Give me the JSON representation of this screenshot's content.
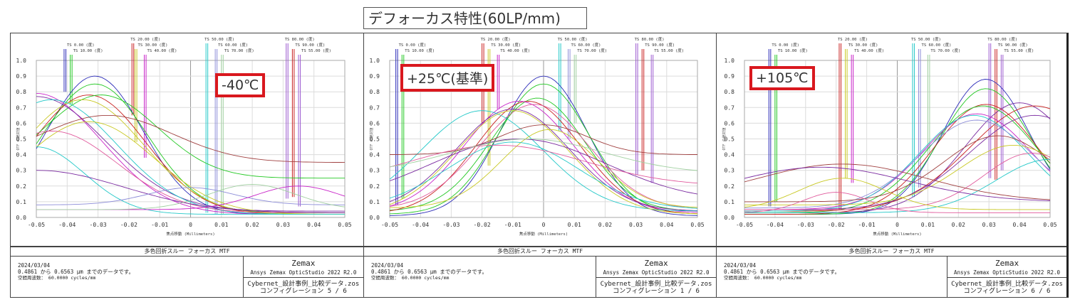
{
  "page_title": "デフォーカス特性(60LP/mm)",
  "colors": {
    "highlight_border": "#d9181e",
    "grid": "#d8d8d8",
    "series_palette": [
      "#2b2bb8",
      "#22c822",
      "#c81e1e",
      "#c8c822",
      "#c822c8",
      "#22c8c8",
      "#7a2aa0",
      "#8c8cd8",
      "#e05a9c",
      "#a0d0a0",
      "#a04040",
      "#9b59d0"
    ]
  },
  "chart_data": [
    {
      "type": "line",
      "panel_id": "config-5",
      "temperature_label": "-40℃",
      "title": "多色回折スルー フォーカス MTF",
      "xlabel": "焦点移動 (Millimeters)",
      "ylabel": "OTF の絶対値",
      "xlim": [
        -0.05,
        0.05
      ],
      "ylim": [
        0.0,
        1.0
      ],
      "x_ticks": [
        "-0.05",
        "-0.04",
        "-0.03",
        "-0.02",
        "-0.01",
        "0",
        "0.01",
        "0.02",
        "0.03",
        "0.04",
        "0.05"
      ],
      "y_ticks": [
        "0.0",
        "0.1",
        "0.2",
        "0.3",
        "0.4",
        "0.5",
        "0.6",
        "0.7",
        "0.8",
        "0.9",
        "1.0"
      ],
      "grid": true,
      "field_markers": [
        {
          "label": "TS 0.00 (度)",
          "x": -0.041,
          "color": "#2b2bb8",
          "y_end": 0.8
        },
        {
          "label": "TS 10.00 (度)",
          "x": -0.039,
          "color": "#22c822",
          "y_end": 0.72
        },
        {
          "label": "TS 20.00 (度)",
          "x": -0.019,
          "color": "#c81e1e",
          "y_end": 0.65
        },
        {
          "label": "TS 30.00 (度)",
          "x": -0.018,
          "color": "#c8c822",
          "y_end": 0.48
        },
        {
          "label": "TS 40.00 (度)",
          "x": -0.015,
          "color": "#c822c8",
          "y_end": 0.38
        },
        {
          "label": "TS 50.00 (度)",
          "x": 0.005,
          "color": "#22c8c8",
          "y_end": 0.03
        },
        {
          "label": "TS 60.00 (度)",
          "x": 0.008,
          "color": "#8c8cd8",
          "y_end": 0.02
        },
        {
          "label": "TS 70.00 (度)",
          "x": 0.01,
          "color": "#a0d0a0",
          "y_end": 0.02
        },
        {
          "label": "TS 80.00 (度)",
          "x": 0.031,
          "color": "#9b59d0",
          "y_end": 0.12
        },
        {
          "label": "TS 90.00 (度)",
          "x": 0.033,
          "color": "#c81e1e",
          "y_end": 0.13
        },
        {
          "label": "TS 55.00 (度)",
          "x": 0.035,
          "color": "#9b59d0",
          "y_end": 0.07
        }
      ],
      "series": [
        {
          "name": "s1",
          "color": "#2b2bb8",
          "peak_x": -0.031,
          "peak": 0.9,
          "width": 0.022,
          "base": 0.02
        },
        {
          "name": "s2",
          "color": "#22c822",
          "peak_x": -0.031,
          "peak": 0.85,
          "width": 0.024,
          "base": 0.03
        },
        {
          "name": "s3",
          "color": "#c81e1e",
          "peak_x": -0.033,
          "peak": 0.78,
          "width": 0.026,
          "base": 0.02
        },
        {
          "name": "s4",
          "color": "#22c822",
          "peak_x": -0.029,
          "peak": 0.78,
          "width": 0.026,
          "base": 0.25
        },
        {
          "name": "s5",
          "color": "#c8c822",
          "peak_x": -0.035,
          "peak": 0.75,
          "width": 0.028,
          "base": 0.02
        },
        {
          "name": "s6",
          "color": "#c822c8",
          "peak_x": -0.05,
          "peak": 0.79,
          "width": 0.03,
          "base": 0.02
        },
        {
          "name": "s7",
          "color": "#7a2aa0",
          "peak_x": -0.05,
          "peak": 0.77,
          "width": 0.032,
          "base": 0.04
        },
        {
          "name": "s8",
          "color": "#22c8c8",
          "peak_x": -0.045,
          "peak": 0.75,
          "width": 0.03,
          "base": 0.02
        },
        {
          "name": "s9",
          "color": "#a04040",
          "peak_x": -0.027,
          "peak": 0.65,
          "width": 0.03,
          "base": 0.35
        },
        {
          "name": "s10",
          "color": "#c8c822",
          "peak_x": -0.033,
          "peak": 0.61,
          "width": 0.03,
          "base": 0.02
        },
        {
          "name": "s11",
          "color": "#e05a9c",
          "peak_x": -0.045,
          "peak": 0.55,
          "width": 0.03,
          "base": 0.03
        },
        {
          "name": "s12",
          "color": "#22c8c8",
          "peak_x": -0.05,
          "peak": 0.45,
          "width": 0.022,
          "base": 0.02
        },
        {
          "name": "s13",
          "color": "#7a2aa0",
          "peak_x": -0.05,
          "peak": 0.3,
          "width": 0.04,
          "base": 0.03
        },
        {
          "name": "s14",
          "color": "#8c8cd8",
          "peak_x": 0.0,
          "peak": 0.19,
          "width": 0.02,
          "base": 0.08
        },
        {
          "name": "s15",
          "color": "#c822c8",
          "peak_x": 0.035,
          "peak": 0.2,
          "width": 0.02,
          "base": 0.05
        },
        {
          "name": "s16",
          "color": "#a0d0a0",
          "peak_x": 0.02,
          "peak": 0.21,
          "width": 0.02,
          "base": 0.05
        }
      ]
    },
    {
      "type": "line",
      "panel_id": "config-1",
      "temperature_label": "+25℃(基準)",
      "title": "多色回折スルー フォーカス MTF",
      "xlabel": "焦点移動 (Millimeters)",
      "ylabel": "OTF の絶対値",
      "xlim": [
        -0.05,
        0.05
      ],
      "ylim": [
        0.0,
        1.0
      ],
      "x_ticks": [
        "-0.05",
        "-0.04",
        "-0.03",
        "-0.02",
        "-0.01",
        "0",
        "0.01",
        "0.02",
        "0.03",
        "0.04",
        "0.05"
      ],
      "y_ticks": [
        "0.0",
        "0.1",
        "0.2",
        "0.3",
        "0.4",
        "0.5",
        "0.6",
        "0.7",
        "0.8",
        "0.9",
        "1.0"
      ],
      "grid": true,
      "field_markers": [
        {
          "label": "TS 0.00 (度)",
          "x": -0.048,
          "color": "#2b2bb8",
          "y_end": 0.08
        },
        {
          "label": "TS 10.00 (度)",
          "x": -0.046,
          "color": "#22c822",
          "y_end": 0.12
        },
        {
          "label": "TS 20.00 (度)",
          "x": -0.02,
          "color": "#c81e1e",
          "y_end": 0.6
        },
        {
          "label": "TS 30.00 (度)",
          "x": -0.018,
          "color": "#c8c822",
          "y_end": 0.33
        },
        {
          "label": "TS 40.00 (度)",
          "x": -0.015,
          "color": "#c822c8",
          "y_end": 0.69
        },
        {
          "label": "TS 50.00 (度)",
          "x": 0.005,
          "color": "#22c8c8",
          "y_end": 0.55
        },
        {
          "label": "TS 60.00 (度)",
          "x": 0.008,
          "color": "#8c8cd8",
          "y_end": 0.5
        },
        {
          "label": "TS 70.00 (度)",
          "x": 0.01,
          "color": "#a0d0a0",
          "y_end": 0.6
        },
        {
          "label": "TS 80.00 (度)",
          "x": 0.03,
          "color": "#9b59d0",
          "y_end": 0.27
        },
        {
          "label": "TS 90.00 (度)",
          "x": 0.032,
          "color": "#c81e1e",
          "y_end": 0.3
        },
        {
          "label": "TS 55.00 (度)",
          "x": 0.035,
          "color": "#9b59d0",
          "y_end": 0.22
        }
      ],
      "series": [
        {
          "name": "s1",
          "color": "#2b2bb8",
          "peak_x": 0.0,
          "peak": 0.9,
          "width": 0.02,
          "base": 0.01
        },
        {
          "name": "s2",
          "color": "#22c822",
          "peak_x": 0.0,
          "peak": 0.85,
          "width": 0.021,
          "base": 0.02
        },
        {
          "name": "s3",
          "color": "#22c822",
          "peak_x": -0.002,
          "peak": 0.76,
          "width": 0.022,
          "base": 0.04
        },
        {
          "name": "s4",
          "color": "#c81e1e",
          "peak_x": -0.005,
          "peak": 0.74,
          "width": 0.024,
          "base": 0.02
        },
        {
          "name": "s5",
          "color": "#c822c8",
          "peak_x": -0.008,
          "peak": 0.74,
          "width": 0.025,
          "base": 0.03
        },
        {
          "name": "s6",
          "color": "#e05a9c",
          "peak_x": -0.003,
          "peak": 0.72,
          "width": 0.025,
          "base": 0.05
        },
        {
          "name": "s7",
          "color": "#7a2aa0",
          "peak_x": -0.01,
          "peak": 0.69,
          "width": 0.026,
          "base": 0.04
        },
        {
          "name": "s8",
          "color": "#22c8c8",
          "peak_x": -0.02,
          "peak": 0.68,
          "width": 0.028,
          "base": 0.04
        },
        {
          "name": "s9",
          "color": "#c8c822",
          "peak_x": -0.01,
          "peak": 0.68,
          "width": 0.026,
          "base": 0.02
        },
        {
          "name": "s10",
          "color": "#a04040",
          "peak_x": 0.0,
          "peak": 0.59,
          "width": 0.02,
          "base": 0.4
        },
        {
          "name": "s11",
          "color": "#c8c822",
          "peak_x": 0.002,
          "peak": 0.56,
          "width": 0.022,
          "base": 0.06
        },
        {
          "name": "s12",
          "color": "#7a2aa0",
          "peak_x": -0.008,
          "peak": 0.5,
          "width": 0.04,
          "base": 0.1
        },
        {
          "name": "s13",
          "color": "#22c8c8",
          "peak_x": -0.01,
          "peak": 0.48,
          "width": 0.03,
          "base": 0.05
        },
        {
          "name": "s14",
          "color": "#e05a9c",
          "peak_x": -0.015,
          "peak": 0.46,
          "width": 0.04,
          "base": 0.2
        },
        {
          "name": "s15",
          "color": "#a0d0a0",
          "peak_x": -0.005,
          "peak": 0.5,
          "width": 0.035,
          "base": 0.28
        }
      ]
    },
    {
      "type": "line",
      "panel_id": "config-6",
      "temperature_label": "+105℃",
      "title": "多色回折スルー フォーカス MTF",
      "xlabel": "焦点移動 (Millimeters)",
      "ylabel": "OTF の絶対値",
      "xlim": [
        -0.05,
        0.05
      ],
      "ylim": [
        0.0,
        1.0
      ],
      "x_ticks": [
        "-0.05",
        "-0.04",
        "-0.03",
        "-0.02",
        "-0.01",
        "0",
        "0.01",
        "0.02",
        "0.03",
        "0.04",
        "0.05"
      ],
      "y_ticks": [
        "0.0",
        "0.1",
        "0.2",
        "0.3",
        "0.4",
        "0.5",
        "0.6",
        "0.7",
        "0.8",
        "0.9",
        "1.0"
      ],
      "grid": true,
      "field_markers": [
        {
          "label": "TS 0.00 (度)",
          "x": -0.042,
          "color": "#2b2bb8",
          "y_end": 0.07
        },
        {
          "label": "TS 10.00 (度)",
          "x": -0.04,
          "color": "#22c822",
          "y_end": 0.1
        },
        {
          "label": "TS 20.00 (度)",
          "x": -0.019,
          "color": "#c81e1e",
          "y_end": 0.05
        },
        {
          "label": "TS 30.00 (度)",
          "x": -0.017,
          "color": "#c8c822",
          "y_end": 0.25
        },
        {
          "label": "TS 40.00 (度)",
          "x": -0.015,
          "color": "#c822c8",
          "y_end": 0.22
        },
        {
          "label": "TS 50.00 (度)",
          "x": 0.005,
          "color": "#22c8c8",
          "y_end": 0.13
        },
        {
          "label": "TS 60.00 (度)",
          "x": 0.007,
          "color": "#8c8cd8",
          "y_end": 0.19
        },
        {
          "label": "TS 70.00 (度)",
          "x": 0.01,
          "color": "#a0d0a0",
          "y_end": 0.4
        },
        {
          "label": "TS 80.00 (度)",
          "x": 0.03,
          "color": "#9b59d0",
          "y_end": 0.25
        },
        {
          "label": "TS 90.00 (度)",
          "x": 0.032,
          "color": "#c81e1e",
          "y_end": 0.24
        },
        {
          "label": "TS 55.00 (度)",
          "x": 0.034,
          "color": "#9b59d0",
          "y_end": 0.3
        }
      ],
      "series": [
        {
          "name": "s1",
          "color": "#2b2bb8",
          "peak_x": 0.029,
          "peak": 0.88,
          "width": 0.02,
          "base": 0.02
        },
        {
          "name": "s2",
          "color": "#22c822",
          "peak_x": 0.029,
          "peak": 0.82,
          "width": 0.021,
          "base": 0.02
        },
        {
          "name": "s3",
          "color": "#7a2aa0",
          "peak_x": 0.04,
          "peak": 0.73,
          "width": 0.025,
          "base": 0.03
        },
        {
          "name": "s4",
          "color": "#c81e1e",
          "peak_x": 0.029,
          "peak": 0.72,
          "width": 0.024,
          "base": 0.02
        },
        {
          "name": "s5",
          "color": "#22c822",
          "peak_x": 0.028,
          "peak": 0.71,
          "width": 0.025,
          "base": 0.03
        },
        {
          "name": "s6",
          "color": "#c81e1e",
          "peak_x": 0.045,
          "peak": 0.71,
          "width": 0.03,
          "base": 0.04
        },
        {
          "name": "s7",
          "color": "#c822c8",
          "peak_x": 0.026,
          "peak": 0.66,
          "width": 0.025,
          "base": 0.05
        },
        {
          "name": "s8",
          "color": "#22c8c8",
          "peak_x": 0.025,
          "peak": 0.65,
          "width": 0.025,
          "base": 0.04
        },
        {
          "name": "s9",
          "color": "#8c8cd8",
          "peak_x": 0.026,
          "peak": 0.62,
          "width": 0.026,
          "base": 0.06
        },
        {
          "name": "s10",
          "color": "#7a2aa0",
          "peak_x": 0.045,
          "peak": 0.65,
          "width": 0.03,
          "base": 0.05
        },
        {
          "name": "s11",
          "color": "#a04040",
          "peak_x": 0.033,
          "peak": 0.52,
          "width": 0.025,
          "base": 0.1
        },
        {
          "name": "s12",
          "color": "#c8c822",
          "peak_x": 0.038,
          "peak": 0.46,
          "width": 0.025,
          "base": 0.08
        },
        {
          "name": "s13",
          "color": "#e05a9c",
          "peak_x": 0.044,
          "peak": 0.41,
          "width": 0.022,
          "base": 0.05
        },
        {
          "name": "s14",
          "color": "#22c8c8",
          "peak_x": 0.05,
          "peak": 0.37,
          "width": 0.025,
          "base": 0.03
        },
        {
          "name": "s15",
          "color": "#a04040",
          "peak_x": -0.018,
          "peak": 0.34,
          "width": 0.04,
          "base": 0.1
        },
        {
          "name": "s16",
          "color": "#7a2aa0",
          "peak_x": -0.025,
          "peak": 0.32,
          "width": 0.04,
          "base": 0.1
        },
        {
          "name": "s17",
          "color": "#c8c822",
          "peak_x": -0.018,
          "peak": 0.25,
          "width": 0.02,
          "base": 0.05
        },
        {
          "name": "s18",
          "color": "#e05a9c",
          "peak_x": -0.02,
          "peak": 0.16,
          "width": 0.015,
          "base": 0.03
        }
      ]
    }
  ],
  "panels": [
    {
      "temperature_label": "-40℃",
      "footer": {
        "title": "多色回折スルー フォーカス MTF",
        "date": "2024/03/04",
        "wavelength": "0.4861 から 0.6563 μm までのデータです。",
        "spatial_freq": "空間周波数： 60.0000 cycles/mm",
        "brand": "Zemax",
        "version": "Ansys Zemax OpticStudio 2022 R2.0",
        "filename": "Cybernet_設計事例_比較データ.zos",
        "config": "コンフィグレーション 5 / 6"
      }
    },
    {
      "temperature_label": "+25℃(基準)",
      "footer": {
        "title": "多色回折スルー フォーカス MTF",
        "date": "2024/03/04",
        "wavelength": "0.4861 から 0.6563 μm までのデータです。",
        "spatial_freq": "空間周波数： 60.0000 cycles/mm",
        "brand": "Zemax",
        "version": "Ansys Zemax OpticStudio 2022 R2.0",
        "filename": "Cybernet_設計事例_比較データ.zos",
        "config": "コンフィグレーション 1 / 6"
      }
    },
    {
      "temperature_label": "+105℃",
      "footer": {
        "title": "多色回折スルー フォーカス MTF",
        "date": "2024/03/04",
        "wavelength": "0.4861 から 0.6563 μm までのデータです。",
        "spatial_freq": "空間周波数： 60.0000 cycles/mm",
        "brand": "Zemax",
        "version": "Ansys Zemax OpticStudio 2022 R2.0",
        "filename": "Cybernet_設計事例_比較データ.zos",
        "config": "コンフィグレーション 6 / 6"
      }
    }
  ]
}
